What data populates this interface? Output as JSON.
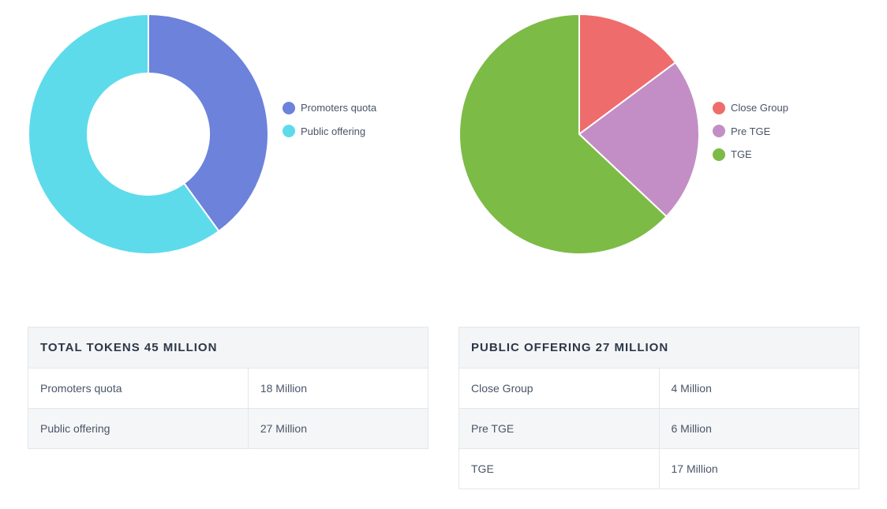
{
  "chart_data": [
    {
      "type": "pie",
      "variant": "donut",
      "categories": [
        "Promoters quota",
        "Public offering"
      ],
      "values": [
        18,
        27
      ],
      "colors": [
        "#6c82db",
        "#5ddbeb"
      ],
      "legend_position": "right"
    },
    {
      "type": "pie",
      "categories": [
        "Close Group",
        "Pre TGE",
        "TGE"
      ],
      "values": [
        4,
        6,
        17
      ],
      "colors": [
        "#ef6c6c",
        "#c38ec6",
        "#7dbb47"
      ],
      "legend_position": "right"
    }
  ],
  "tables": {
    "left": {
      "title": "TOTAL TOKENS 45 MILLION",
      "rows": [
        {
          "label": "Promoters quota",
          "value": "18 Million"
        },
        {
          "label": "Public offering",
          "value": "27 Million"
        }
      ]
    },
    "right": {
      "title": "PUBLIC OFFERING 27 MILLION",
      "rows": [
        {
          "label": "Close Group",
          "value": "4 Million"
        },
        {
          "label": "Pre TGE",
          "value": "6 Million"
        },
        {
          "label": "TGE",
          "value": "17 Million"
        }
      ]
    }
  }
}
